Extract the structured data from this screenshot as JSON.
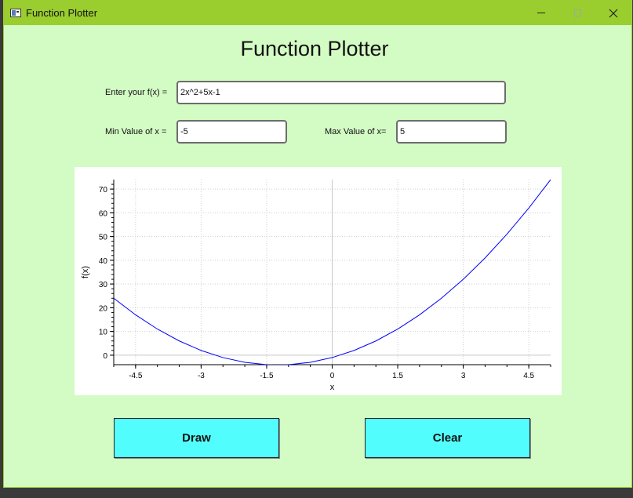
{
  "window": {
    "title": "Function Plotter",
    "controls": [
      "minimize-icon",
      "maximize-icon",
      "close-icon"
    ]
  },
  "heading": "Function Plotter",
  "form": {
    "function_label": "Enter your f(x) =",
    "function_value": "2x^2+5x-1",
    "min_label": "Min Value of x =",
    "min_value": "-5",
    "max_label": "Max Value of x=",
    "max_value": "5"
  },
  "chart_data": {
    "type": "line",
    "title": "",
    "xlabel": "x",
    "ylabel": "f(x)",
    "xlim": [
      -5,
      5
    ],
    "ylim": [
      -4,
      74
    ],
    "xticks": [
      "-4.5",
      "-3",
      "-1.5",
      "0",
      "1.5",
      "3",
      "4.5"
    ],
    "yticks": [
      "0",
      "10",
      "20",
      "30",
      "40",
      "50",
      "60",
      "70"
    ],
    "grid": true,
    "series": [
      {
        "color": "#0000ff",
        "x": [
          -5,
          -4.5,
          -4,
          -3.5,
          -3,
          -2.5,
          -2,
          -1.5,
          -1.25,
          -1,
          -0.5,
          0,
          0.5,
          1,
          1.5,
          2,
          2.5,
          3,
          3.5,
          4,
          4.5,
          5
        ],
        "y": [
          24,
          16.997,
          11,
          5.998,
          2,
          -1.002,
          -3,
          -4,
          -4.125,
          -4,
          -3,
          -1,
          2,
          6,
          11,
          17,
          24,
          32,
          41,
          51,
          62,
          74
        ]
      }
    ]
  },
  "buttons": {
    "draw": "Draw",
    "clear": "Clear"
  }
}
